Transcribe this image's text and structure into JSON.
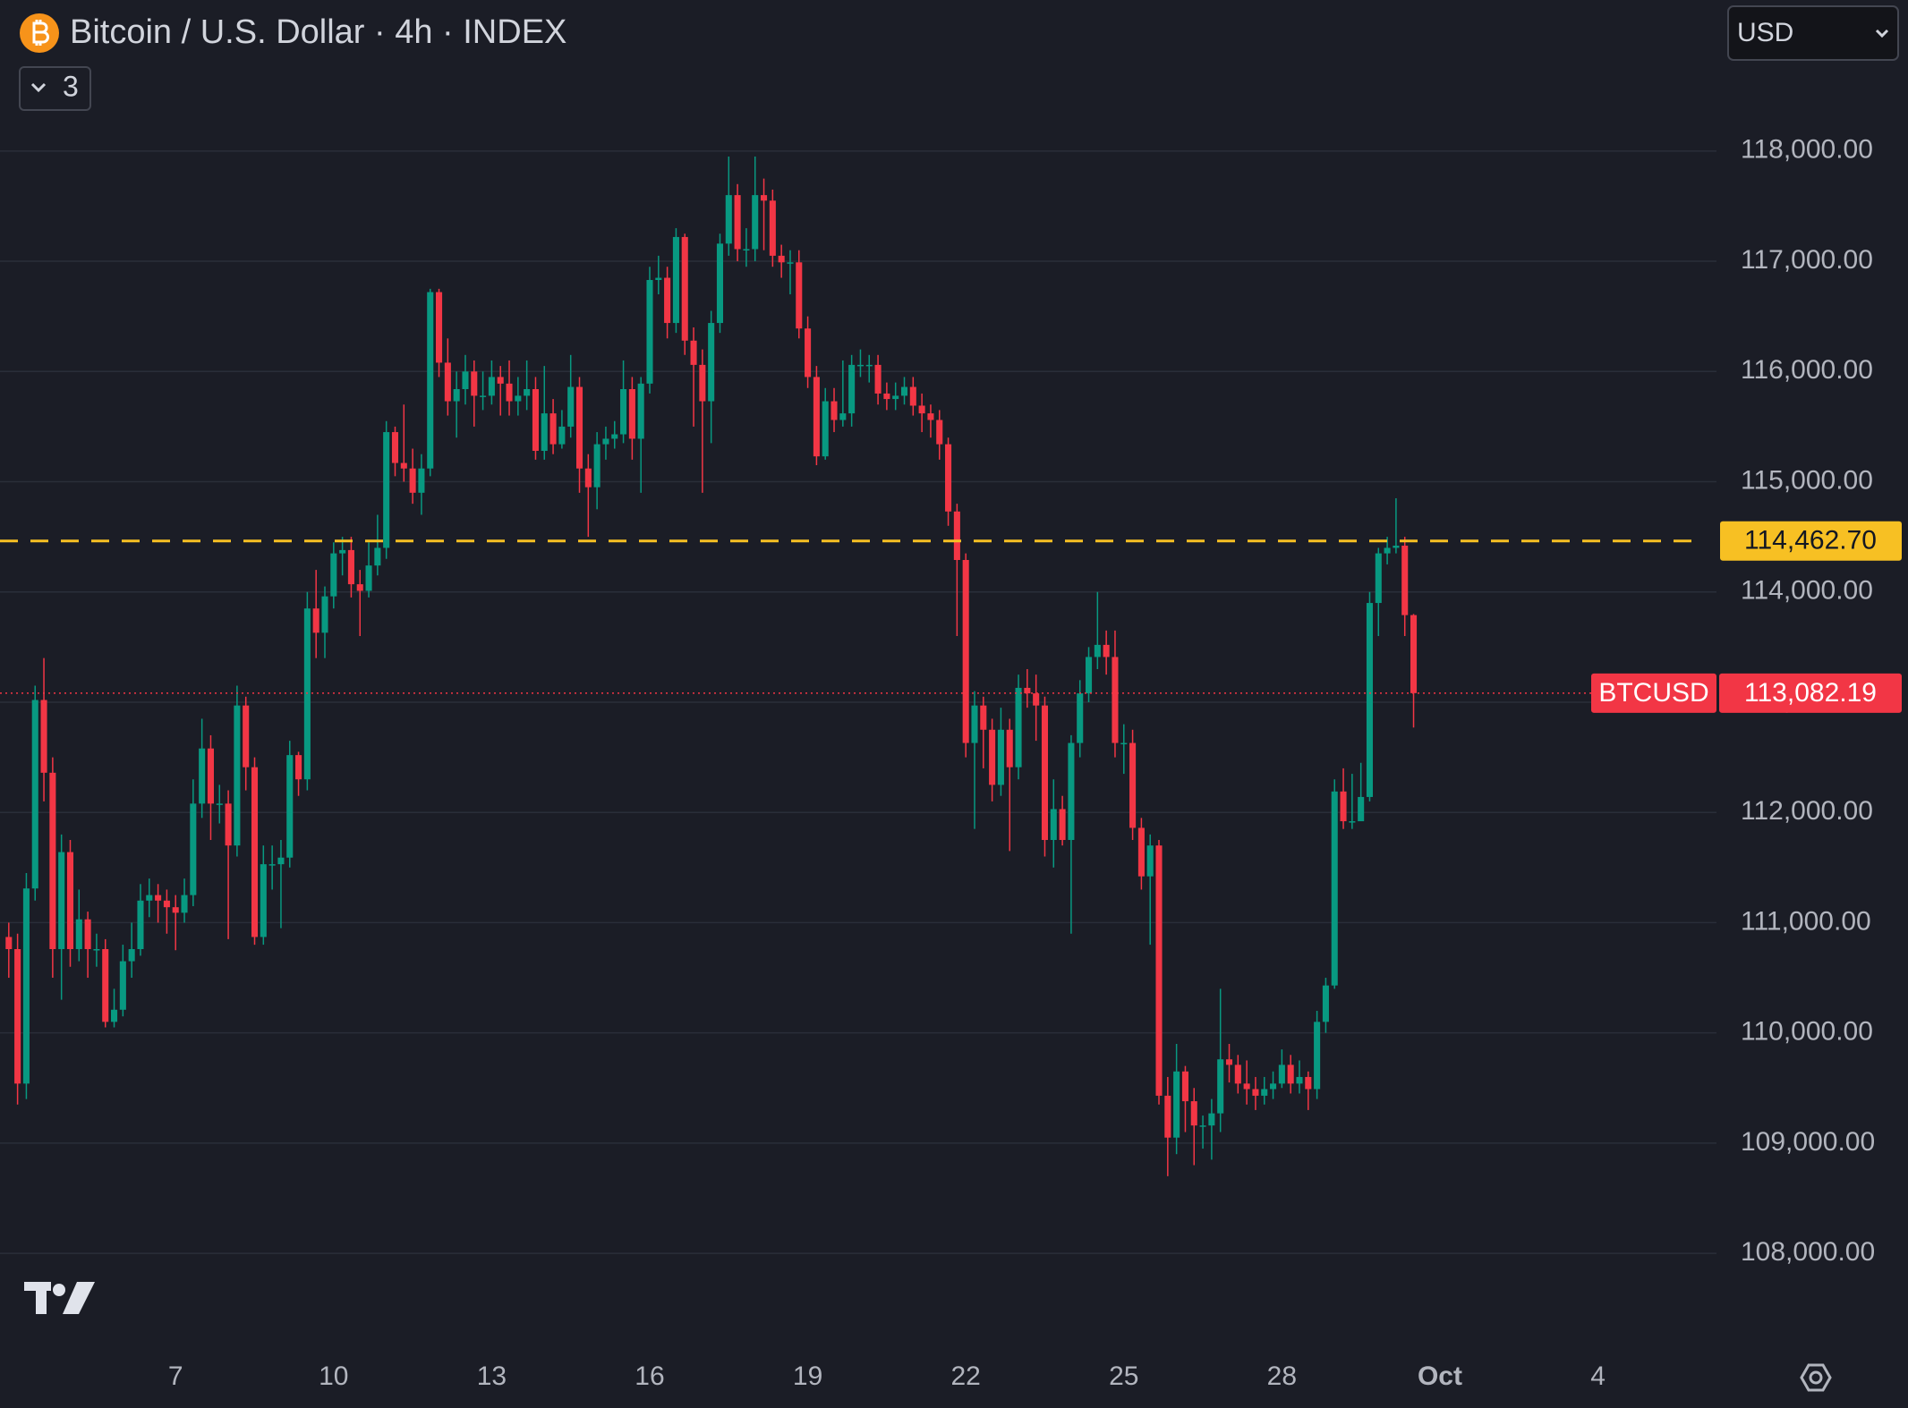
{
  "chart_data": {
    "type": "candlestick",
    "title": "Bitcoin / U.S. Dollar · 4h · INDEX",
    "indicator_count": 3,
    "currency": "USD",
    "up_color": "#089981",
    "down_color": "#f23645",
    "grid": true,
    "x": [
      92,
      96,
      100,
      104,
      108,
      112,
      116,
      120,
      124,
      128,
      132,
      136,
      140,
      144,
      148,
      152,
      156,
      160,
      164,
      168,
      172,
      176,
      180,
      184,
      188,
      192,
      196,
      200,
      204,
      208,
      212,
      216,
      220,
      224,
      228,
      232,
      236,
      240,
      244,
      248,
      252,
      256,
      260,
      264,
      268,
      272,
      276,
      280,
      284,
      288,
      292,
      296,
      300,
      304,
      308,
      312,
      316,
      320,
      324,
      328,
      332,
      336,
      340,
      344,
      348,
      352,
      356,
      360,
      364,
      368,
      372,
      376,
      380,
      384,
      388,
      392,
      396,
      400,
      404,
      408,
      412,
      416,
      420,
      424,
      428,
      432,
      436,
      440,
      444,
      448,
      452,
      456,
      460,
      464,
      468,
      472,
      476,
      480,
      484,
      488,
      492,
      496,
      500,
      504,
      508,
      512,
      516,
      520,
      524,
      528,
      532,
      536,
      540,
      544,
      548,
      552,
      556,
      560,
      564,
      568,
      572,
      576,
      580,
      584,
      588,
      592,
      596,
      600,
      604,
      608,
      612,
      616,
      620,
      624,
      628,
      632,
      636,
      640,
      644,
      648,
      652,
      656,
      660,
      664,
      668,
      672,
      676,
      680,
      684,
      688,
      692,
      696,
      700,
      704,
      708,
      712,
      716,
      720,
      724,
      728,
      732
    ],
    "open": [
      110870,
      110760,
      109540,
      111310,
      113020,
      112360,
      110760,
      111640,
      110760,
      111030,
      110760,
      110760,
      110100,
      110210,
      110650,
      110760,
      111200,
      111250,
      111200,
      111140,
      111090,
      111250,
      112080,
      112580,
      112080,
      112080,
      111700,
      112970,
      112410,
      110870,
      111530,
      111530,
      111590,
      112520,
      112300,
      113850,
      113630,
      113960,
      114350,
      114380,
      114070,
      114010,
      114240,
      114400,
      115450,
      115170,
      115120,
      114900,
      115120,
      116720,
      116080,
      115730,
      115840,
      116000,
      115780,
      115780,
      115950,
      115890,
      115730,
      115780,
      115840,
      115280,
      115620,
      115340,
      115500,
      115860,
      115120,
      114950,
      115340,
      115390,
      115430,
      115840,
      115390,
      115890,
      116830,
      116850,
      116440,
      117220,
      116280,
      116060,
      115730,
      116440,
      117160,
      117600,
      117110,
      117110,
      117600,
      117550,
      117050,
      116990,
      116990,
      116390,
      115950,
      115230,
      115730,
      115560,
      115620,
      116060,
      116060,
      116060,
      115800,
      115750,
      115780,
      115860,
      115690,
      115620,
      115560,
      115340,
      114730,
      114290,
      112630,
      112970,
      112750,
      112250,
      112750,
      112410,
      113130,
      113080,
      112970,
      111750,
      112030,
      111750,
      112630,
      113080,
      113410,
      113520,
      113410,
      112630,
      112630,
      111860,
      111420,
      111700,
      109430,
      109050,
      109650,
      109380,
      109160,
      109160,
      109270,
      109760,
      109710,
      109540,
      109490,
      109430,
      109490,
      109540,
      109710,
      109540,
      109600,
      109490,
      110100,
      110430,
      112190,
      111920,
      111920,
      112140,
      113900,
      114350,
      114400,
      114420,
      113790
    ],
    "high": [
      111000,
      110900,
      111450,
      113150,
      113400,
      112500,
      111800,
      111750,
      111300,
      111100,
      110900,
      110850,
      110400,
      110800,
      111000,
      111350,
      111400,
      111350,
      111300,
      111250,
      111400,
      112300,
      112850,
      112700,
      112250,
      112200,
      113150,
      113050,
      112500,
      111700,
      111700,
      111750,
      112650,
      112550,
      114000,
      114200,
      114050,
      114450,
      114500,
      114500,
      114200,
      114450,
      114700,
      115550,
      115500,
      115700,
      115300,
      115250,
      116750,
      116750,
      116300,
      116000,
      116150,
      116100,
      116000,
      116100,
      116050,
      116100,
      115950,
      116100,
      115950,
      116050,
      115750,
      115650,
      116150,
      115950,
      115250,
      115450,
      115500,
      115550,
      116100,
      115950,
      115950,
      116950,
      117050,
      116950,
      117300,
      117250,
      116400,
      116200,
      116550,
      117250,
      117950,
      117700,
      117300,
      117950,
      117750,
      117650,
      117150,
      117100,
      117100,
      116500,
      116050,
      115850,
      115850,
      116100,
      116150,
      116200,
      116150,
      116150,
      115900,
      115900,
      115950,
      115950,
      115800,
      115700,
      115650,
      115400,
      114800,
      114350,
      113100,
      113050,
      112850,
      112950,
      112850,
      113250,
      113300,
      113250,
      113050,
      112300,
      112150,
      112700,
      113200,
      113500,
      114000,
      113650,
      113650,
      112800,
      112750,
      111950,
      111800,
      111750,
      109600,
      109900,
      109700,
      109500,
      109250,
      109400,
      110400,
      109900,
      109800,
      109750,
      109600,
      109600,
      109650,
      109850,
      109800,
      109750,
      109650,
      110200,
      110500,
      112300,
      112400,
      112350,
      112450,
      114000,
      114400,
      114500,
      114850,
      114500,
      113800
    ],
    "low": [
      110500,
      109350,
      109400,
      111200,
      112100,
      110500,
      110300,
      110600,
      110650,
      110500,
      110600,
      110050,
      110050,
      110150,
      110500,
      110700,
      111050,
      111000,
      110900,
      110750,
      111000,
      111150,
      111950,
      111750,
      111900,
      110850,
      111600,
      112200,
      110800,
      110800,
      111300,
      110950,
      111500,
      112150,
      112200,
      113400,
      113400,
      113850,
      114150,
      113950,
      113600,
      113950,
      114150,
      114300,
      115050,
      115000,
      114800,
      114700,
      115050,
      115950,
      115600,
      115400,
      115700,
      115500,
      115650,
      115700,
      115600,
      115600,
      115600,
      115650,
      115200,
      115200,
      115250,
      115300,
      115400,
      114900,
      114500,
      114750,
      115200,
      115300,
      115350,
      115200,
      114900,
      115800,
      116700,
      116300,
      116350,
      116150,
      115500,
      114900,
      115350,
      116350,
      117050,
      117000,
      116950,
      117000,
      117100,
      116950,
      116850,
      116700,
      116300,
      115850,
      115150,
      115200,
      115450,
      115500,
      115500,
      115950,
      115900,
      115700,
      115650,
      115650,
      115700,
      115600,
      115450,
      115400,
      115200,
      114600,
      113600,
      112500,
      111850,
      112400,
      112100,
      112150,
      111650,
      112300,
      112950,
      112650,
      111600,
      111500,
      111700,
      110900,
      112500,
      113000,
      113300,
      113250,
      112500,
      112350,
      111750,
      111300,
      110800,
      109350,
      108700,
      108900,
      109100,
      108800,
      108950,
      108850,
      109100,
      109550,
      109450,
      109350,
      109300,
      109350,
      109400,
      109500,
      109450,
      109450,
      109300,
      109400,
      110000,
      110400,
      111850,
      111850,
      111950,
      112100,
      113600,
      114250,
      114350,
      113600,
      112770
    ],
    "close": [
      110760,
      109540,
      111310,
      113020,
      112360,
      110760,
      111640,
      110760,
      111030,
      110760,
      110760,
      110100,
      110210,
      110650,
      110760,
      111200,
      111250,
      111200,
      111140,
      111090,
      111250,
      112080,
      112580,
      112080,
      112080,
      111700,
      112970,
      112410,
      110870,
      111530,
      111530,
      111590,
      112520,
      112300,
      113850,
      113630,
      113960,
      114350,
      114380,
      114070,
      114010,
      114240,
      114400,
      115450,
      115170,
      115120,
      114900,
      115120,
      116720,
      116080,
      115730,
      115840,
      116000,
      115780,
      115780,
      115950,
      115890,
      115730,
      115780,
      115840,
      115280,
      115620,
      115340,
      115500,
      115860,
      115120,
      114950,
      115340,
      115390,
      115430,
      115840,
      115390,
      115890,
      116830,
      116850,
      116440,
      117220,
      116280,
      116060,
      115730,
      116440,
      117160,
      117600,
      117110,
      117110,
      117600,
      117550,
      117050,
      116990,
      116990,
      116390,
      115950,
      115230,
      115730,
      115560,
      115620,
      116060,
      116060,
      116060,
      115800,
      115750,
      115780,
      115860,
      115690,
      115620,
      115560,
      115340,
      114730,
      114290,
      112630,
      112970,
      112750,
      112250,
      112750,
      112410,
      113130,
      113080,
      112970,
      111750,
      112030,
      111750,
      112630,
      113080,
      113410,
      113520,
      113410,
      112630,
      112630,
      111860,
      111420,
      111700,
      109430,
      109050,
      109650,
      109380,
      109160,
      109160,
      109270,
      109760,
      109710,
      109540,
      109490,
      109430,
      109490,
      109540,
      109710,
      109540,
      109600,
      109490,
      110100,
      110430,
      112190,
      111920,
      111920,
      112140,
      113900,
      114350,
      114400,
      114420,
      113790,
      113082.19
    ],
    "xlim": [
      88,
      870
    ],
    "xticks": [
      {
        "value": 168,
        "label": "7"
      },
      {
        "value": 240,
        "label": "10"
      },
      {
        "value": 312,
        "label": "13"
      },
      {
        "value": 384,
        "label": "16"
      },
      {
        "value": 456,
        "label": "19"
      },
      {
        "value": 528,
        "label": "22"
      },
      {
        "value": 600,
        "label": "25"
      },
      {
        "value": 672,
        "label": "28"
      },
      {
        "value": 744,
        "label": "Oct"
      },
      {
        "value": 816,
        "label": "4"
      }
    ],
    "ylim": [
      107230,
      119370
    ],
    "yticks": [
      {
        "value": 108000,
        "label": "108,000.00"
      },
      {
        "value": 109000,
        "label": "109,000.00"
      },
      {
        "value": 110000,
        "label": "110,000.00"
      },
      {
        "value": 111000,
        "label": "111,000.00"
      },
      {
        "value": 112000,
        "label": "112,000.00"
      },
      {
        "value": 113000,
        "label": "113,000.00"
      },
      {
        "value": 114000,
        "label": "114,000.00"
      },
      {
        "value": 115000,
        "label": "115,000.00"
      },
      {
        "value": 116000,
        "label": "116,000.00"
      },
      {
        "value": 117000,
        "label": "117,000.00"
      },
      {
        "value": 118000,
        "label": "118,000.00"
      }
    ],
    "alert_line": {
      "value": 114462.7,
      "label": "114,462.70",
      "color": "#f7c023"
    },
    "last_price": {
      "name": "BTCUSD",
      "value": 113082.19,
      "label": "113,082.19",
      "color": "#f23645"
    }
  }
}
